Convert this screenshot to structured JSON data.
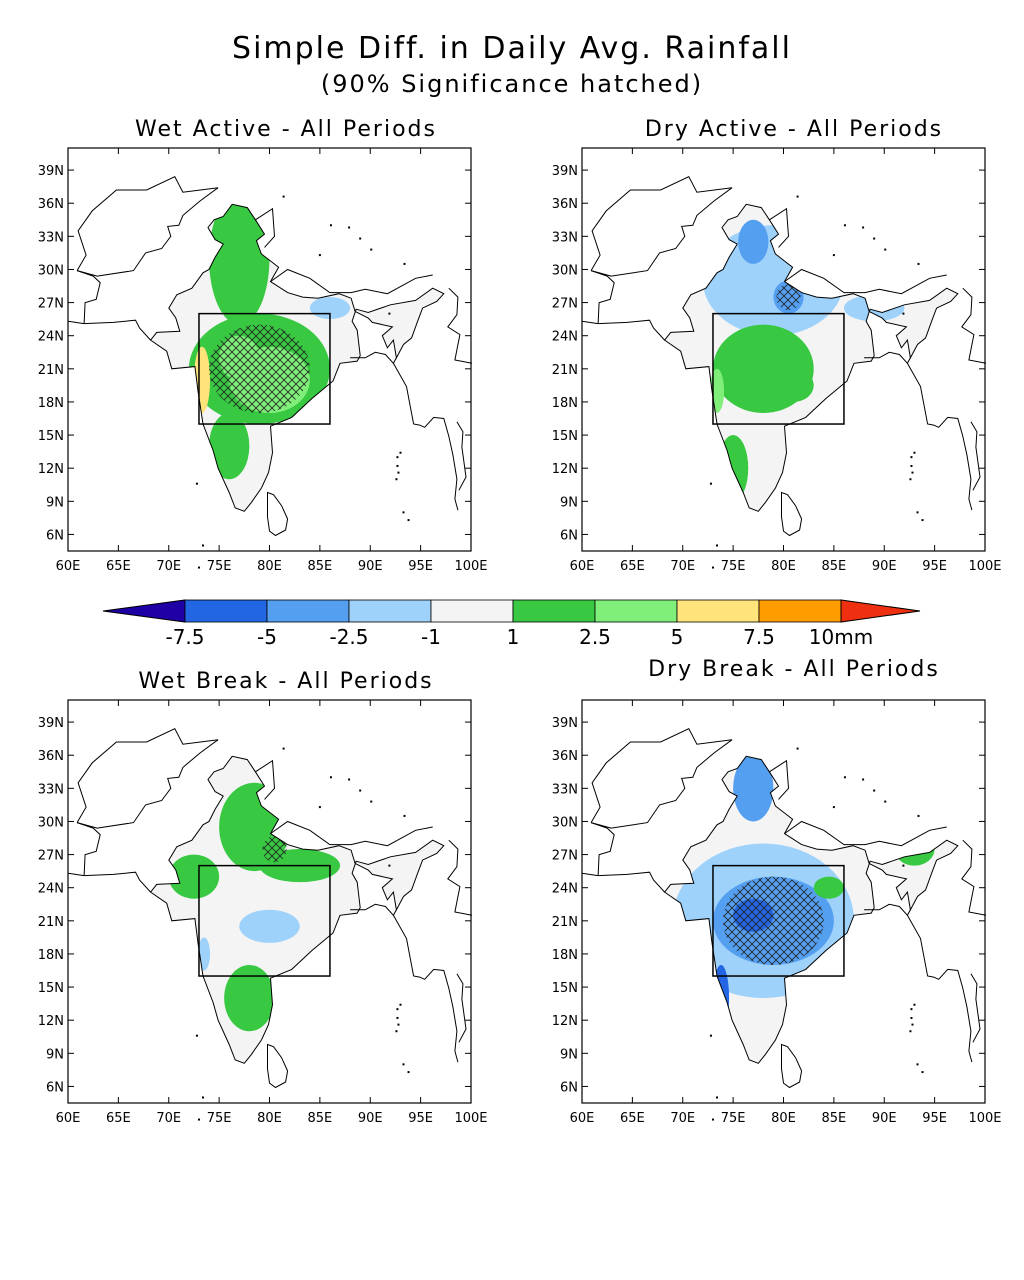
{
  "title": "Simple Diff. in Daily Avg. Rainfall",
  "subtitle": "(90% Significance hatched)",
  "lon_labels": [
    "60E",
    "65E",
    "70E",
    "75E",
    "80E",
    "85E",
    "90E",
    "95E",
    "100E"
  ],
  "lat_labels": [
    "39N",
    "36N",
    "33N",
    "30N",
    "27N",
    "24N",
    "21N",
    "18N",
    "15N",
    "12N",
    "9N",
    "6N"
  ],
  "box": {
    "lon": [
      73,
      86
    ],
    "lat": [
      16,
      26
    ]
  },
  "colorbar": {
    "colors": [
      "#1f00a5",
      "#2266e3",
      "#559ff0",
      "#9ed2fb",
      "#f4f4f4",
      "#38c842",
      "#80ef7a",
      "#ffe47c",
      "#ff9c00",
      "#ee3010"
    ],
    "labels": [
      "-7.5",
      "-5",
      "-2.5",
      "-1",
      "1",
      "2.5",
      "5",
      "7.5",
      "10mm"
    ]
  },
  "panels": [
    {
      "id": "wet-active",
      "title": "Wet Active - All Periods",
      "fields": [
        {
          "level": 4,
          "lon": 76,
          "lat": 24,
          "rx": 11,
          "ry": 11
        },
        {
          "level": 5,
          "lon": 79,
          "lat": 21,
          "rx": 7,
          "ry": 5
        },
        {
          "level": 5,
          "lon": 77,
          "lat": 31,
          "rx": 3,
          "ry": 6
        },
        {
          "level": 5,
          "lon": 76,
          "lat": 14,
          "rx": 2,
          "ry": 3
        },
        {
          "level": 6,
          "lon": 80,
          "lat": 20,
          "rx": 4,
          "ry": 3
        },
        {
          "level": 6,
          "lon": 77,
          "lat": 22,
          "rx": 2,
          "ry": 2
        },
        {
          "level": 7,
          "lon": 73.3,
          "lat": 20,
          "rx": 0.8,
          "ry": 3
        },
        {
          "level": 3,
          "lon": 86,
          "lat": 26.5,
          "rx": 2,
          "ry": 1
        }
      ]
    },
    {
      "id": "dry-active",
      "title": "Dry Active - All Periods",
      "fields": [
        {
          "level": 3,
          "lon": 79,
          "lat": 29,
          "rx": 7,
          "ry": 5
        },
        {
          "level": 2,
          "lon": 77,
          "lat": 32.5,
          "rx": 1.5,
          "ry": 2
        },
        {
          "level": 2,
          "lon": 80.5,
          "lat": 27.5,
          "rx": 1.5,
          "ry": 1.5
        },
        {
          "level": 3,
          "lon": 89,
          "lat": 26.5,
          "rx": 3,
          "ry": 1.2
        },
        {
          "level": 5,
          "lon": 78,
          "lat": 21,
          "rx": 5,
          "ry": 4
        },
        {
          "level": 5,
          "lon": 81,
          "lat": 19.5,
          "rx": 2,
          "ry": 1.5
        },
        {
          "level": 6,
          "lon": 73.4,
          "lat": 19,
          "rx": 0.7,
          "ry": 2
        },
        {
          "level": 5,
          "lon": 75,
          "lat": 12,
          "rx": 1.5,
          "ry": 3
        }
      ]
    },
    {
      "id": "wet-break",
      "title": "Wet Break - All Periods",
      "fields": [
        {
          "level": 5,
          "lon": 78.5,
          "lat": 29.5,
          "rx": 3.5,
          "ry": 4
        },
        {
          "level": 5,
          "lon": 83,
          "lat": 26,
          "rx": 4,
          "ry": 1.5
        },
        {
          "level": 5,
          "lon": 72.5,
          "lat": 25,
          "rx": 2.5,
          "ry": 2
        },
        {
          "level": 3,
          "lon": 80,
          "lat": 20.5,
          "rx": 3,
          "ry": 1.5
        },
        {
          "level": 5,
          "lon": 78,
          "lat": 14,
          "rx": 2.5,
          "ry": 3
        },
        {
          "level": 3,
          "lon": 73.5,
          "lat": 18,
          "rx": 0.6,
          "ry": 1.5
        }
      ]
    },
    {
      "id": "dry-break",
      "title": "Dry Break - All Periods",
      "fields": [
        {
          "level": 3,
          "lon": 78,
          "lat": 21,
          "rx": 9,
          "ry": 7
        },
        {
          "level": 2,
          "lon": 79,
          "lat": 21,
          "rx": 6,
          "ry": 4
        },
        {
          "level": 1,
          "lon": 77,
          "lat": 21.5,
          "rx": 2,
          "ry": 1.5
        },
        {
          "level": 1,
          "lon": 73.8,
          "lat": 14,
          "rx": 0.8,
          "ry": 3
        },
        {
          "level": 2,
          "lon": 77,
          "lat": 33,
          "rx": 2,
          "ry": 3
        },
        {
          "level": 5,
          "lon": 93,
          "lat": 27.5,
          "rx": 2,
          "ry": 1.5
        },
        {
          "level": 5,
          "lon": 84.5,
          "lat": 24,
          "rx": 1.5,
          "ry": 1
        }
      ]
    }
  ]
}
